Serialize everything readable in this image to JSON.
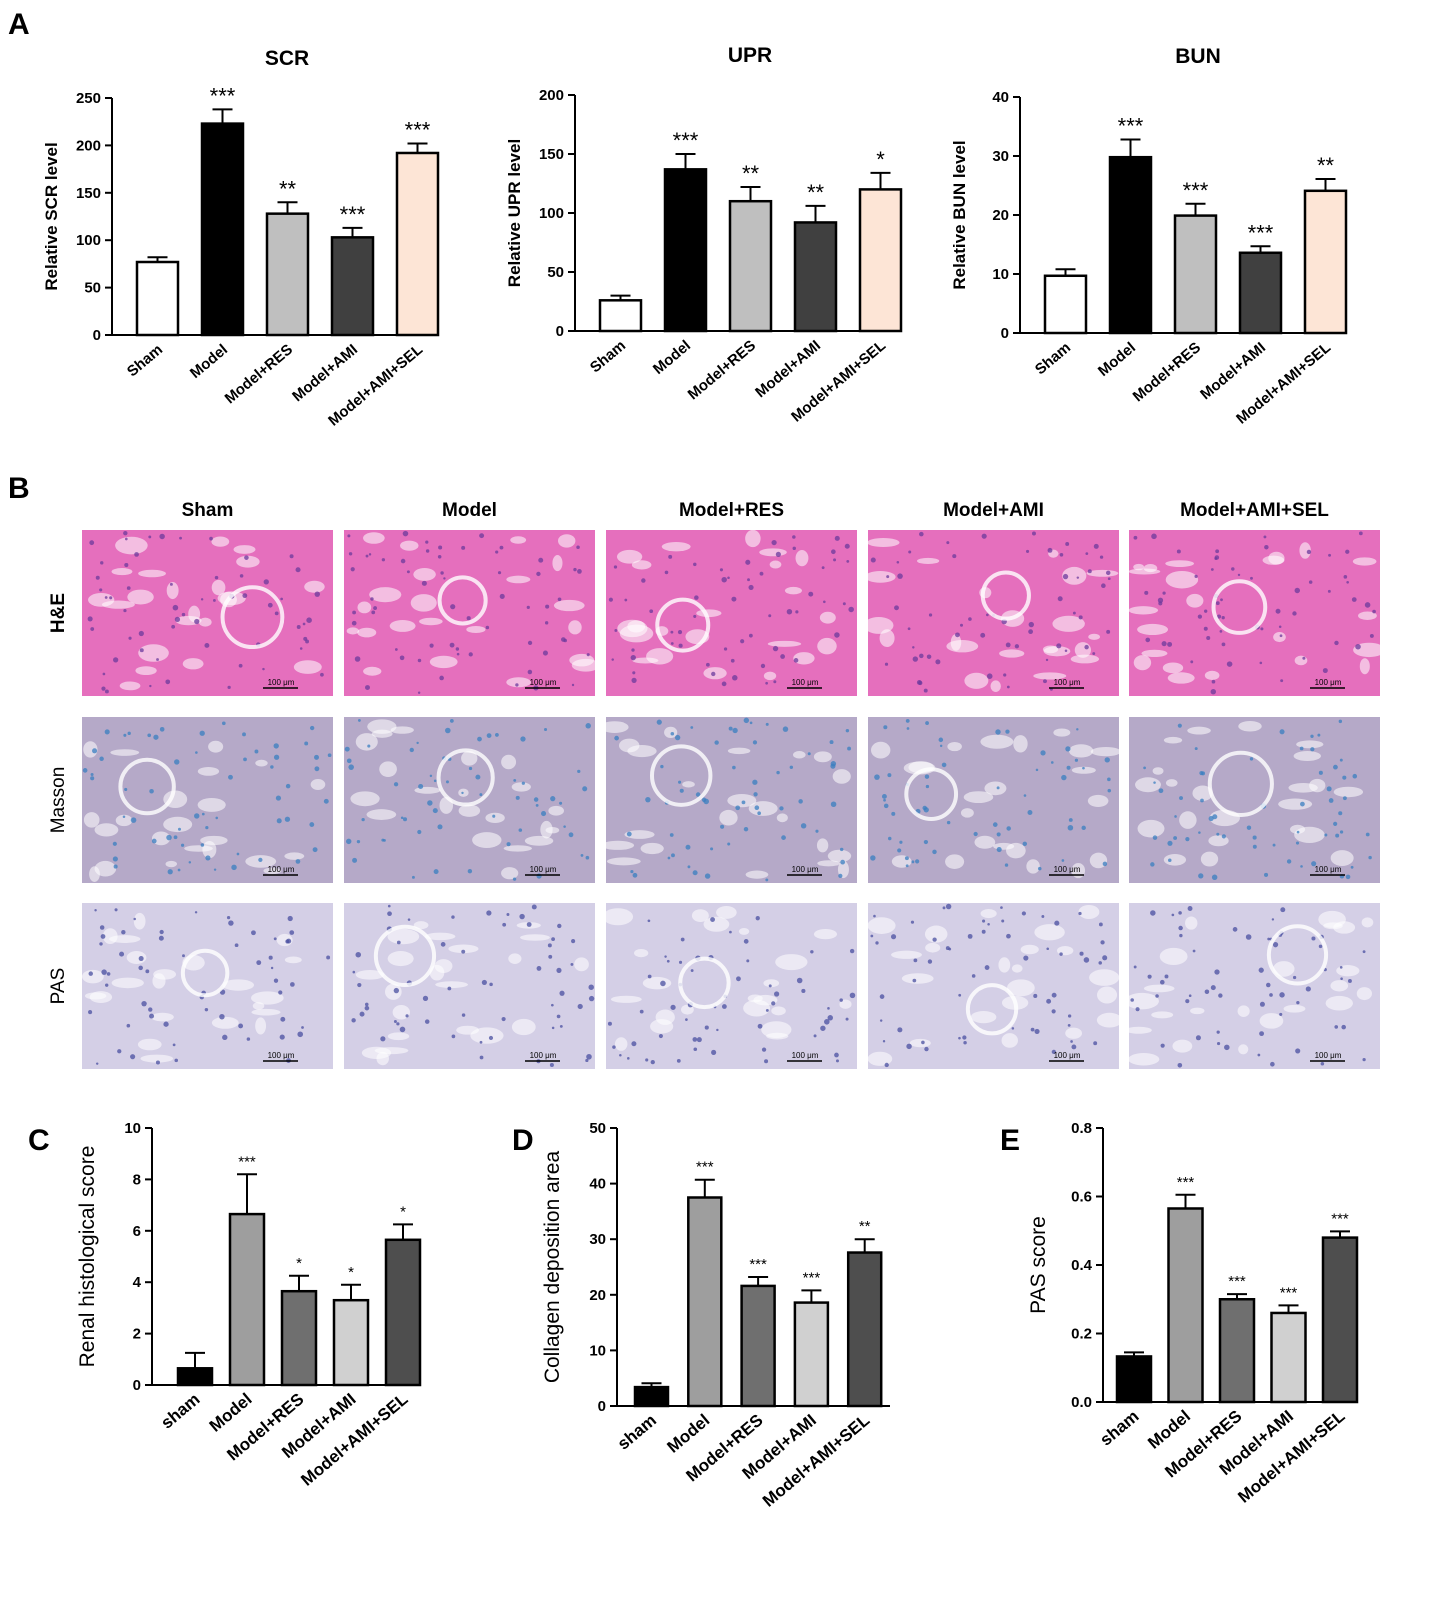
{
  "panel_labels": {
    "A": "A",
    "B": "B",
    "C": "C",
    "D": "D",
    "E": "E"
  },
  "micrograph_grid": {
    "columns": [
      "Sham",
      "Model",
      "Model+RES",
      "Model+AMI",
      "Model+AMI+SEL"
    ],
    "rows": [
      {
        "label": "H&E",
        "fill": "#e56fbd",
        "spot": "#6b3a9c",
        "bold": true
      },
      {
        "label": "Masson",
        "fill": "#b5a9c8",
        "spot": "#3a7fc0",
        "bold": false
      },
      {
        "label": "PAS",
        "fill": "#d4cfe6",
        "spot": "#4a4fa0",
        "bold": false
      }
    ],
    "scale_bar": "100 μm"
  },
  "chart_data": [
    {
      "panel": "A",
      "type": "bar",
      "title": "SCR",
      "ylabel": "Relative SCR level",
      "ylim": [
        0,
        250
      ],
      "yticks": [
        0,
        50,
        100,
        150,
        200,
        250
      ],
      "categories": [
        "Sham",
        "Model",
        "Model+RES",
        "Model+AMI",
        "Model+AMI+SEL"
      ],
      "values": [
        77,
        223,
        128,
        103,
        192
      ],
      "errors": [
        5,
        15,
        12,
        10,
        10
      ],
      "colors": [
        "#ffffff",
        "#000000",
        "#bfbfbf",
        "#404040",
        "#fde5d6"
      ],
      "significance": [
        "",
        "***",
        "**",
        "***",
        "***"
      ]
    },
    {
      "panel": "A",
      "type": "bar",
      "title": "UPR",
      "ylabel": "Relative UPR level",
      "ylim": [
        0,
        200
      ],
      "yticks": [
        0,
        50,
        100,
        150,
        200
      ],
      "categories": [
        "Sham",
        "Model",
        "Model+RES",
        "Model+AMI",
        "Model+AMI+SEL"
      ],
      "values": [
        26,
        137,
        110,
        92,
        120
      ],
      "errors": [
        4,
        13,
        12,
        14,
        14
      ],
      "colors": [
        "#ffffff",
        "#000000",
        "#bfbfbf",
        "#404040",
        "#fde5d6"
      ],
      "significance": [
        "",
        "***",
        "**",
        "**",
        "*"
      ]
    },
    {
      "panel": "A",
      "type": "bar",
      "title": "BUN",
      "ylabel": "Relative BUN level",
      "ylim": [
        0,
        40
      ],
      "yticks": [
        0,
        10,
        20,
        30,
        40
      ],
      "categories": [
        "Sham",
        "Model",
        "Model+RES",
        "Model+AMI",
        "Model+AMI+SEL"
      ],
      "values": [
        9.7,
        29.8,
        19.9,
        13.6,
        24.1
      ],
      "errors": [
        1.1,
        3.0,
        2.0,
        1.1,
        2.0
      ],
      "colors": [
        "#ffffff",
        "#000000",
        "#bfbfbf",
        "#404040",
        "#fde5d6"
      ],
      "significance": [
        "",
        "***",
        "***",
        "***",
        "**"
      ]
    },
    {
      "panel": "C",
      "type": "bar",
      "title": "",
      "ylabel": "Renal histological score",
      "ylim": [
        0,
        10
      ],
      "yticks": [
        0,
        2,
        4,
        6,
        8,
        10
      ],
      "categories": [
        "sham",
        "Model",
        "Model+RES",
        "Model+AMI",
        "Model+AMI+SEL"
      ],
      "values": [
        0.65,
        6.65,
        3.65,
        3.3,
        5.65
      ],
      "errors": [
        0.6,
        1.55,
        0.6,
        0.6,
        0.6
      ],
      "colors": [
        "#000000",
        "#9e9e9e",
        "#6f6f6f",
        "#d0d0d0",
        "#4e4e4e"
      ],
      "significance": [
        "",
        "***",
        "*",
        "*",
        "*"
      ]
    },
    {
      "panel": "D",
      "type": "bar",
      "title": "",
      "ylabel": "Collagen deposition area",
      "ylim": [
        0,
        50
      ],
      "yticks": [
        0,
        10,
        20,
        30,
        40,
        50
      ],
      "categories": [
        "sham",
        "Model",
        "Model+RES",
        "Model+AMI",
        "Model+AMI+SEL"
      ],
      "values": [
        3.4,
        37.5,
        21.6,
        18.6,
        27.6
      ],
      "errors": [
        0.7,
        3.2,
        1.6,
        2.2,
        2.4
      ],
      "colors": [
        "#000000",
        "#9e9e9e",
        "#6f6f6f",
        "#d0d0d0",
        "#4e4e4e"
      ],
      "significance": [
        "",
        "***",
        "***",
        "***",
        "**"
      ]
    },
    {
      "panel": "E",
      "type": "bar",
      "title": "",
      "ylabel": "PAS score",
      "ylim": [
        0,
        0.8
      ],
      "yticks": [
        "0.0",
        "0.2",
        "0.4",
        "0.6",
        "0.8"
      ],
      "categories": [
        "sham",
        "Model",
        "Model+RES",
        "Model+AMI",
        "Model+AMI+SEL"
      ],
      "values": [
        0.133,
        0.565,
        0.3,
        0.26,
        0.48
      ],
      "errors": [
        0.012,
        0.04,
        0.015,
        0.022,
        0.018
      ],
      "colors": [
        "#000000",
        "#9e9e9e",
        "#6f6f6f",
        "#d0d0d0",
        "#4e4e4e"
      ],
      "significance": [
        "",
        "***",
        "***",
        "***",
        "***"
      ]
    }
  ]
}
